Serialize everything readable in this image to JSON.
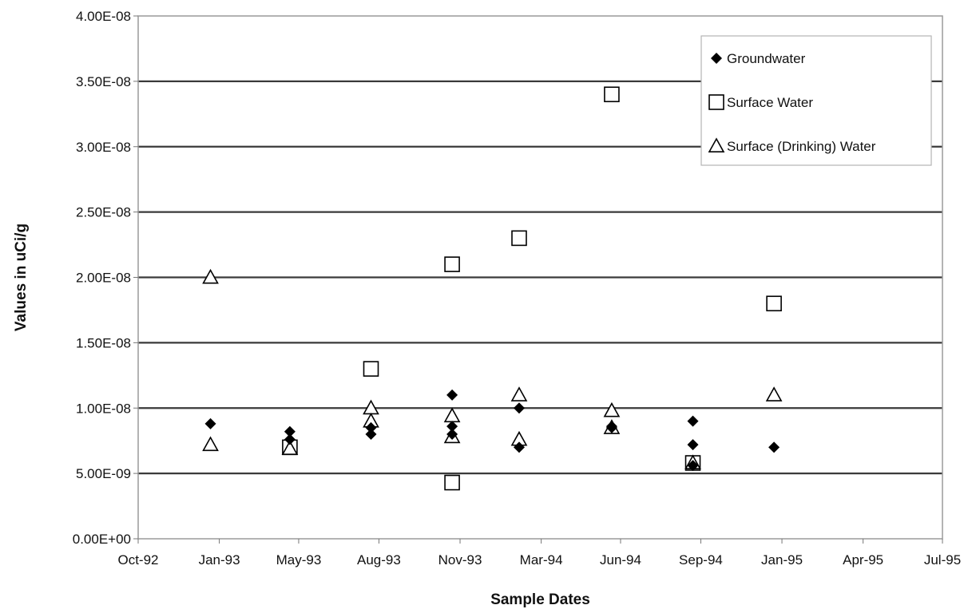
{
  "chart_data": {
    "type": "scatter",
    "title": "",
    "xlabel": "Sample Dates",
    "ylabel": "Values in uCi/g",
    "x_tick_labels": [
      "Oct-92",
      "Jan-93",
      "May-93",
      "Aug-93",
      "Nov-93",
      "Mar-94",
      "Jun-94",
      "Sep-94",
      "Jan-95",
      "Apr-95",
      "Jul-95"
    ],
    "x_ticks": [
      "1992-10-01",
      "1993-01-01",
      "1993-04-01",
      "1993-07-01",
      "1993-10-01",
      "1994-01-01",
      "1994-04-01",
      "1994-07-01",
      "1994-10-01",
      "1995-01-01",
      "1995-04-01"
    ],
    "y_tick_labels": [
      "0.00E+00",
      "5.00E-09",
      "1.00E-08",
      "1.50E-08",
      "2.00E-08",
      "2.50E-08",
      "3.00E-08",
      "3.50E-08",
      "4.00E-08"
    ],
    "xlim": [
      "1992-10-01",
      "1995-04-01"
    ],
    "ylim": [
      0,
      4e-08
    ],
    "grid": "horizontal major gridlines",
    "legend_position": "top-right",
    "series": [
      {
        "name": "Groundwater",
        "marker": "diamond",
        "color": "#000000",
        "points": [
          {
            "x": "1992-12-22",
            "y": 8.8e-09
          },
          {
            "x": "1993-03-22",
            "y": 8.2e-09
          },
          {
            "x": "1993-03-22",
            "y": 7.6e-09
          },
          {
            "x": "1993-06-22",
            "y": 8.5e-09
          },
          {
            "x": "1993-06-22",
            "y": 8e-09
          },
          {
            "x": "1993-09-22",
            "y": 1.1e-08
          },
          {
            "x": "1993-09-22",
            "y": 8.6e-09
          },
          {
            "x": "1993-09-22",
            "y": 8e-09
          },
          {
            "x": "1993-12-07",
            "y": 1e-08
          },
          {
            "x": "1993-12-07",
            "y": 7e-09
          },
          {
            "x": "1994-03-22",
            "y": 8.6e-09
          },
          {
            "x": "1994-03-22",
            "y": 8.5e-09
          },
          {
            "x": "1994-06-22",
            "y": 9e-09
          },
          {
            "x": "1994-06-22",
            "y": 7.2e-09
          },
          {
            "x": "1994-06-22",
            "y": 5.6e-09
          },
          {
            "x": "1994-09-22",
            "y": 7e-09
          }
        ]
      },
      {
        "name": "Surface Water",
        "marker": "square",
        "color": "#000000",
        "points": [
          {
            "x": "1993-03-22",
            "y": 7e-09
          },
          {
            "x": "1993-06-22",
            "y": 1.3e-08
          },
          {
            "x": "1993-09-22",
            "y": 2.1e-08
          },
          {
            "x": "1993-09-22",
            "y": 4.3e-09
          },
          {
            "x": "1993-12-07",
            "y": 2.3e-08
          },
          {
            "x": "1994-03-22",
            "y": 3.4e-08
          },
          {
            "x": "1994-06-22",
            "y": 5.8e-09
          },
          {
            "x": "1994-09-22",
            "y": 1.8e-08
          }
        ]
      },
      {
        "name": "Surface (Drinking) Water",
        "marker": "triangle",
        "color": "#000000",
        "points": [
          {
            "x": "1992-12-22",
            "y": 2e-08
          },
          {
            "x": "1992-12-22",
            "y": 7.2e-09
          },
          {
            "x": "1993-03-22",
            "y": 6.9e-09
          },
          {
            "x": "1993-06-22",
            "y": 1e-08
          },
          {
            "x": "1993-06-22",
            "y": 9e-09
          },
          {
            "x": "1993-09-22",
            "y": 9.4e-09
          },
          {
            "x": "1993-09-22",
            "y": 7.8e-09
          },
          {
            "x": "1993-12-07",
            "y": 1.1e-08
          },
          {
            "x": "1993-12-07",
            "y": 7.6e-09
          },
          {
            "x": "1994-03-22",
            "y": 9.8e-09
          },
          {
            "x": "1994-03-22",
            "y": 8.5e-09
          },
          {
            "x": "1994-06-22",
            "y": 5.8e-09
          },
          {
            "x": "1994-09-22",
            "y": 1.1e-08
          }
        ]
      }
    ]
  }
}
